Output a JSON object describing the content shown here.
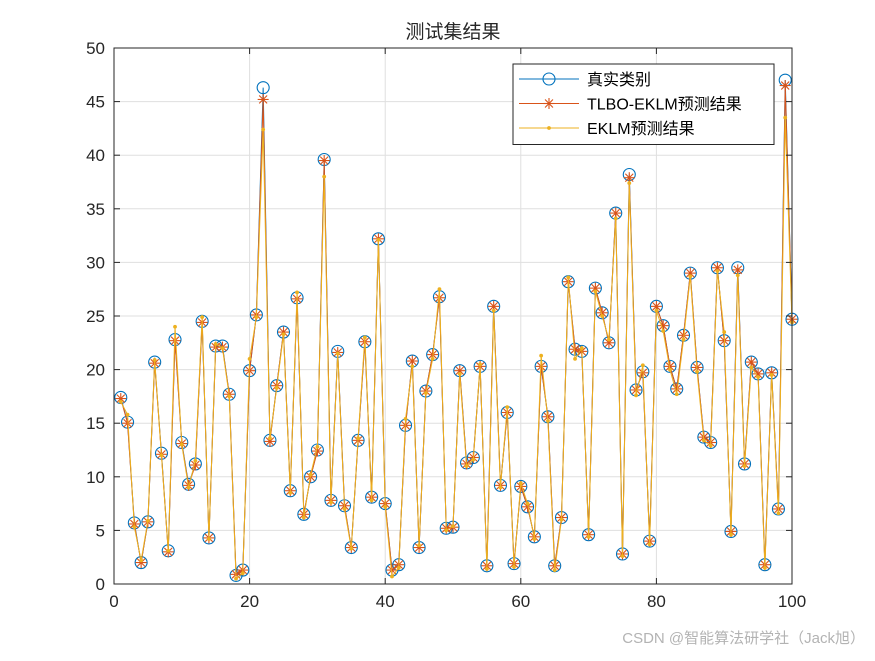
{
  "chart_data": {
    "type": "line",
    "title": "测试集结果",
    "xlabel": "",
    "ylabel": "",
    "xlim": [
      0,
      100
    ],
    "ylim": [
      0,
      50
    ],
    "xticks": [
      0,
      20,
      40,
      60,
      80,
      100
    ],
    "yticks": [
      0,
      5,
      10,
      15,
      20,
      25,
      30,
      35,
      40,
      45,
      50
    ],
    "grid": true,
    "legend_position": "top-right",
    "x": [
      1,
      2,
      3,
      4,
      5,
      6,
      7,
      8,
      9,
      10,
      11,
      12,
      13,
      14,
      15,
      16,
      17,
      18,
      19,
      20,
      21,
      22,
      23,
      24,
      25,
      26,
      27,
      28,
      29,
      30,
      31,
      32,
      33,
      34,
      35,
      36,
      37,
      38,
      39,
      40,
      41,
      42,
      43,
      44,
      45,
      46,
      47,
      48,
      49,
      50,
      51,
      52,
      53,
      54,
      55,
      56,
      57,
      58,
      59,
      60,
      61,
      62,
      63,
      64,
      65,
      66,
      67,
      68,
      69,
      70,
      71,
      72,
      73,
      74,
      75,
      76,
      77,
      78,
      79,
      80,
      81,
      82,
      83,
      84,
      85,
      86,
      87,
      88,
      89,
      90,
      91,
      92,
      93,
      94,
      95,
      96,
      97,
      98,
      99,
      100
    ],
    "series": [
      {
        "name": "真实类别",
        "color": "#0072BD",
        "marker": "circle",
        "values": [
          17.4,
          15.1,
          5.7,
          2.0,
          5.8,
          20.7,
          12.2,
          3.1,
          22.8,
          13.2,
          9.3,
          11.2,
          24.5,
          4.3,
          22.2,
          22.2,
          17.7,
          0.8,
          1.3,
          19.9,
          25.1,
          46.3,
          13.4,
          18.5,
          23.5,
          8.7,
          26.7,
          6.5,
          10.0,
          12.5,
          39.6,
          7.8,
          21.7,
          7.3,
          3.4,
          13.4,
          22.6,
          8.1,
          32.2,
          7.5,
          1.3,
          1.8,
          14.8,
          20.8,
          3.4,
          18.0,
          21.4,
          26.8,
          5.2,
          5.3,
          19.9,
          11.3,
          11.8,
          20.3,
          1.7,
          25.9,
          9.2,
          16.0,
          1.9,
          9.1,
          7.2,
          4.4,
          20.3,
          15.6,
          1.7,
          6.2,
          28.2,
          21.9,
          21.7,
          4.6,
          27.6,
          25.3,
          22.5,
          34.6,
          2.8,
          38.2,
          18.1,
          19.8,
          4.0,
          25.9,
          24.1,
          20.3,
          18.2,
          23.2,
          29.0,
          20.2,
          13.7,
          13.2,
          29.5,
          22.7,
          4.9,
          29.5,
          11.2,
          20.7,
          19.6,
          1.8,
          19.7,
          7.0,
          47.0,
          24.7
        ]
      },
      {
        "name": "TLBO-EKLM预测结果",
        "color": "#D95319",
        "marker": "star",
        "values": [
          17.3,
          15.0,
          5.6,
          2.0,
          5.8,
          20.6,
          12.1,
          3.0,
          22.7,
          13.1,
          9.2,
          11.1,
          24.4,
          4.3,
          22.1,
          22.1,
          17.7,
          0.9,
          1.3,
          19.9,
          25.1,
          45.2,
          13.3,
          18.5,
          23.5,
          8.7,
          26.6,
          6.5,
          10.0,
          12.4,
          39.5,
          7.8,
          21.6,
          7.3,
          3.4,
          13.4,
          22.6,
          8.1,
          32.2,
          7.5,
          1.3,
          1.8,
          14.8,
          20.8,
          3.4,
          18.0,
          21.4,
          26.7,
          5.2,
          5.3,
          19.9,
          11.2,
          11.8,
          20.3,
          1.7,
          25.9,
          9.2,
          16.0,
          1.9,
          9.1,
          7.2,
          4.4,
          20.3,
          15.6,
          1.7,
          6.2,
          28.2,
          21.9,
          21.7,
          4.6,
          27.6,
          25.3,
          22.5,
          34.6,
          2.8,
          37.9,
          18.1,
          19.7,
          4.0,
          25.9,
          24.1,
          20.3,
          18.2,
          23.2,
          29.0,
          20.2,
          13.7,
          13.2,
          29.5,
          22.7,
          4.9,
          29.3,
          11.2,
          20.7,
          19.6,
          1.8,
          19.7,
          7.0,
          46.5,
          24.7
        ]
      },
      {
        "name": "EKLM预测结果",
        "color": "#EDB120",
        "marker": "dot",
        "values": [
          17.0,
          15.8,
          5.3,
          2.2,
          5.9,
          20.9,
          12.0,
          3.1,
          24.0,
          13.0,
          9.0,
          11.5,
          24.9,
          4.2,
          22.4,
          22.0,
          17.5,
          0.5,
          1.0,
          21.0,
          24.9,
          42.4,
          13.6,
          18.3,
          23.3,
          8.5,
          27.2,
          6.2,
          10.2,
          12.8,
          38.0,
          7.6,
          21.5,
          7.0,
          3.3,
          13.6,
          23.0,
          7.8,
          32.1,
          7.2,
          0.7,
          1.5,
          15.4,
          20.3,
          3.6,
          17.8,
          21.0,
          27.5,
          5.0,
          5.4,
          19.6,
          11.0,
          11.6,
          20.5,
          1.4,
          25.5,
          9.0,
          16.5,
          1.6,
          9.4,
          7.5,
          4.2,
          21.3,
          15.2,
          1.3,
          6.0,
          28.6,
          21.0,
          22.0,
          4.4,
          27.3,
          25.0,
          22.8,
          34.1,
          2.6,
          37.4,
          17.6,
          20.4,
          3.7,
          25.5,
          23.6,
          20.0,
          17.7,
          22.8,
          28.7,
          19.8,
          13.4,
          12.9,
          29.2,
          23.5,
          4.6,
          28.8,
          11.0,
          20.2,
          19.3,
          1.5,
          19.5,
          6.6,
          43.5,
          24.4
        ]
      }
    ]
  },
  "watermark": "CSDN @智能算法研学社（Jack旭）"
}
